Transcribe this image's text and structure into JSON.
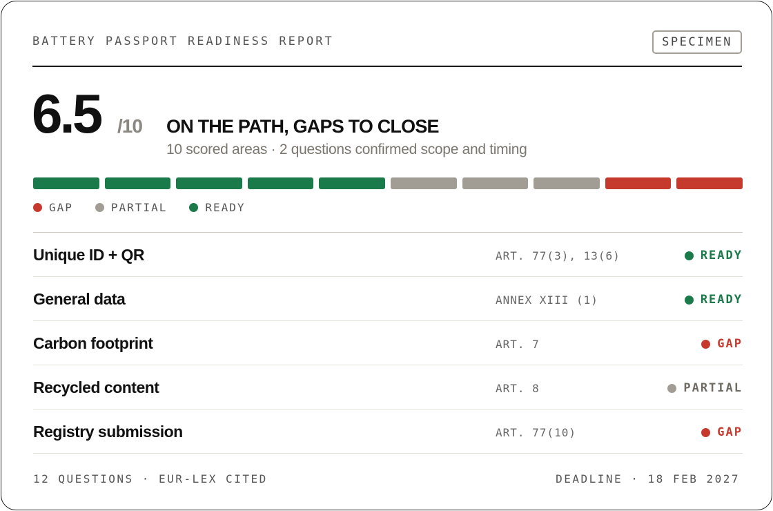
{
  "header": {
    "title": "BATTERY PASSPORT READINESS REPORT",
    "badge": "SPECIMEN"
  },
  "score": {
    "value": "6.5",
    "max": "/10",
    "verdict": "ON THE PATH, GAPS TO CLOSE",
    "subline": "10 scored areas · 2 questions confirmed scope and timing"
  },
  "colors": {
    "ready": "#1b7a4a",
    "partial": "#a19d94",
    "gap": "#c53a2c"
  },
  "segments": [
    "ready",
    "ready",
    "ready",
    "ready",
    "ready",
    "partial",
    "partial",
    "partial",
    "gap",
    "gap"
  ],
  "legend": [
    {
      "status": "gap",
      "label": "GAP"
    },
    {
      "status": "partial",
      "label": "PARTIAL"
    },
    {
      "status": "ready",
      "label": "READY"
    }
  ],
  "rows": [
    {
      "name": "Unique ID + QR",
      "ref": "ART. 77(3), 13(6)",
      "status": "ready",
      "status_label": "READY"
    },
    {
      "name": "General data",
      "ref": "ANNEX XIII (1)",
      "status": "ready",
      "status_label": "READY"
    },
    {
      "name": "Carbon footprint",
      "ref": "ART. 7",
      "status": "gap",
      "status_label": "GAP"
    },
    {
      "name": "Recycled content",
      "ref": "ART. 8",
      "status": "partial",
      "status_label": "PARTIAL"
    },
    {
      "name": "Registry submission",
      "ref": "ART. 77(10)",
      "status": "gap",
      "status_label": "GAP"
    }
  ],
  "footer": {
    "left": "12 QUESTIONS · EUR-LEX CITED",
    "right": "DEADLINE · 18 FEB 2027"
  }
}
